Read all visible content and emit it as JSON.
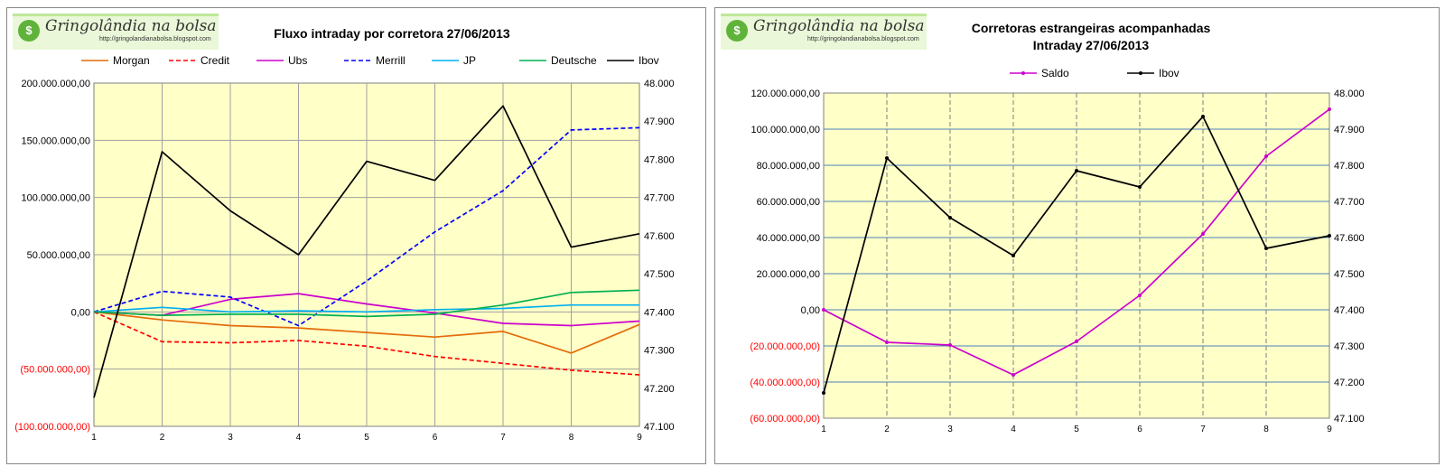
{
  "logo": {
    "title": "Gringolândia na bolsa",
    "url": "http://gringolandianabolsa.blogspot.com",
    "badge": "$"
  },
  "chart_data": [
    {
      "type": "line",
      "title": "Fluxo intraday por corretora  27/06/2013",
      "categories": [
        "1",
        "2",
        "3",
        "4",
        "5",
        "6",
        "7",
        "8",
        "9"
      ],
      "left_axis": {
        "min": -100000000,
        "max": 200000000,
        "ticks": [
          "200.000.000,00",
          "150.000.000,00",
          "100.000.000,00",
          "50.000.000,00",
          "0,00",
          "(50.000.000,00)",
          "(100.000.000,00)"
        ],
        "tick_values": [
          200000000,
          150000000,
          100000000,
          50000000,
          0,
          -50000000,
          -100000000
        ]
      },
      "right_axis": {
        "min": 47100,
        "max": 48000,
        "ticks": [
          "48.000",
          "47.900",
          "47.800",
          "47.700",
          "47.600",
          "47.500",
          "47.400",
          "47.300",
          "47.200",
          "47.100"
        ],
        "tick_values": [
          48000,
          47900,
          47800,
          47700,
          47600,
          47500,
          47400,
          47300,
          47200,
          47100
        ]
      },
      "series": [
        {
          "name": "Morgan",
          "axis": "left",
          "color": "#e36c0a",
          "dash": "",
          "values": [
            0,
            -7000000,
            -12000000,
            -14000000,
            -18000000,
            -22000000,
            -17000000,
            -36000000,
            -11000000
          ]
        },
        {
          "name": "Credit",
          "axis": "left",
          "color": "#ff0000",
          "dash": "5,3",
          "values": [
            0,
            -26000000,
            -27000000,
            -25000000,
            -30000000,
            -39000000,
            -45000000,
            -51000000,
            -55000000
          ]
        },
        {
          "name": "Ubs",
          "axis": "left",
          "color": "#cc00cc",
          "dash": "",
          "values": [
            0,
            -3000000,
            11000000,
            16000000,
            7000000,
            -1000000,
            -10000000,
            -12000000,
            -8000000
          ]
        },
        {
          "name": "Merrill",
          "axis": "left",
          "color": "#0000ff",
          "dash": "5,3",
          "values": [
            0,
            18000000,
            13000000,
            -12000000,
            27000000,
            70000000,
            106000000,
            159000000,
            161000000
          ]
        },
        {
          "name": "JP",
          "axis": "left",
          "color": "#00b0f0",
          "dash": "",
          "values": [
            0,
            4000000,
            0,
            1000000,
            0,
            2000000,
            3000000,
            6000000,
            6000000
          ]
        },
        {
          "name": "Deutsche",
          "axis": "left",
          "color": "#00b050",
          "dash": "",
          "values": [
            0,
            -3000000,
            -2000000,
            -2000000,
            -4000000,
            -2000000,
            6000000,
            17000000,
            19000000
          ]
        },
        {
          "name": "Ibov",
          "axis": "right",
          "color": "#000000",
          "dash": "",
          "values": [
            47175,
            47820,
            47665,
            47550,
            47795,
            47745,
            47940,
            47570,
            47605
          ]
        }
      ]
    },
    {
      "type": "line",
      "title": "Corretoras estrangeiras acompanhadas",
      "subtitle": "Intraday  27/06/2013",
      "categories": [
        "1",
        "2",
        "3",
        "4",
        "5",
        "6",
        "7",
        "8",
        "9"
      ],
      "left_axis": {
        "min": -60000000,
        "max": 120000000,
        "ticks": [
          "120.000.000,00",
          "100.000.000,00",
          "80.000.000,00",
          "60.000.000,00",
          "40.000.000,00",
          "20.000.000,00",
          "0,00",
          "(20.000.000,00)",
          "(40.000.000,00)",
          "(60.000.000,00)"
        ],
        "tick_values": [
          120000000,
          100000000,
          80000000,
          60000000,
          40000000,
          20000000,
          0,
          -20000000,
          -40000000,
          -60000000
        ]
      },
      "right_axis": {
        "min": 47100,
        "max": 48000,
        "ticks": [
          "48.000",
          "47.900",
          "47.800",
          "47.700",
          "47.600",
          "47.500",
          "47.400",
          "47.300",
          "47.200",
          "47.100"
        ],
        "tick_values": [
          48000,
          47900,
          47800,
          47700,
          47600,
          47500,
          47400,
          47300,
          47200,
          47100
        ]
      },
      "series": [
        {
          "name": "Saldo",
          "axis": "left",
          "color": "#cc00cc",
          "dash": "",
          "values": [
            0,
            -18000000,
            -19500000,
            -36000000,
            -17500000,
            8000000,
            42000000,
            85000000,
            111000000
          ]
        },
        {
          "name": "Ibov",
          "axis": "right",
          "color": "#000000",
          "dash": "",
          "values": [
            47170,
            47820,
            47655,
            47550,
            47785,
            47740,
            47935,
            47570,
            47605
          ]
        }
      ]
    }
  ]
}
